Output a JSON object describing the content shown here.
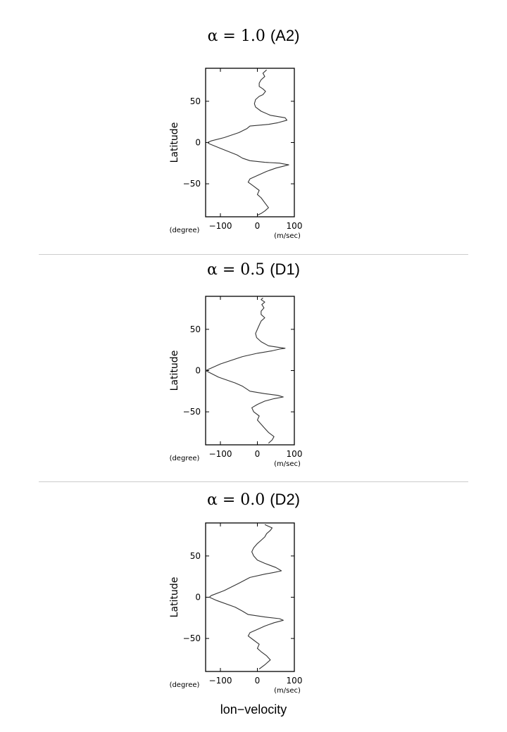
{
  "xlabel": "lon−velocity",
  "chart_data": [
    {
      "type": "line",
      "title_math": "α = 1.0",
      "title_tag": "(A2)",
      "ylabel": "Latitude",
      "y_unit_label": "(degree)",
      "x_unit_label": "(m/sec)",
      "xlim": [
        -140,
        100
      ],
      "ylim": [
        -90,
        90
      ],
      "xticks": [
        -100,
        0,
        100
      ],
      "xtick_labels": [
        "−100",
        "0",
        "100"
      ],
      "yticks": [
        50,
        0,
        -50
      ],
      "ytick_labels": [
        "50",
        "0",
        "−50"
      ],
      "series": [
        {
          "x": [
            25,
            20,
            15,
            20,
            10,
            5,
            5,
            15,
            22,
            15,
            5,
            -5,
            -8,
            -5,
            10,
            35,
            75,
            80,
            55,
            30,
            -20,
            -28,
            -50,
            -90,
            -125,
            -135,
            -128,
            -100,
            -55,
            -40,
            -20,
            20,
            60,
            85,
            50,
            25,
            0,
            -20,
            -25,
            -10,
            5,
            0,
            10,
            20,
            30,
            20,
            10,
            0
          ],
          "y": [
            88,
            86,
            84,
            80,
            76,
            72,
            68,
            65,
            62,
            58,
            56,
            52,
            47,
            43,
            38,
            33,
            30,
            27,
            24,
            22,
            20,
            17,
            12,
            6,
            2,
            0,
            -2,
            -7,
            -15,
            -19,
            -22,
            -24,
            -25,
            -27,
            -31,
            -35,
            -40,
            -44,
            -48,
            -53,
            -58,
            -63,
            -67,
            -73,
            -79,
            -83,
            -86,
            -88
          ]
        }
      ]
    },
    {
      "type": "line",
      "title_math": "α = 0.5",
      "title_tag": "(D1)",
      "ylabel": "Latitude",
      "y_unit_label": "(degree)",
      "x_unit_label": "(m/sec)",
      "xlim": [
        -140,
        100
      ],
      "ylim": [
        -90,
        90
      ],
      "xticks": [
        -100,
        0,
        100
      ],
      "xtick_labels": [
        "−100",
        "0",
        "100"
      ],
      "yticks": [
        50,
        0,
        -50
      ],
      "ytick_labels": [
        "50",
        "0",
        "−50"
      ],
      "series": [
        {
          "x": [
            15,
            10,
            20,
            12,
            18,
            10,
            10,
            20,
            10,
            5,
            0,
            -5,
            -2,
            10,
            30,
            60,
            75,
            60,
            40,
            0,
            -40,
            -100,
            -140,
            -105,
            -60,
            -40,
            -30,
            -20,
            20,
            55,
            70,
            45,
            20,
            0,
            -15,
            -10,
            5,
            0,
            10,
            20,
            30,
            45,
            40,
            30
          ],
          "y": [
            88,
            86,
            83,
            80,
            76,
            72,
            68,
            64,
            60,
            55,
            50,
            45,
            40,
            35,
            30,
            28,
            27,
            26,
            24,
            21,
            17,
            8,
            0,
            -8,
            -15,
            -19,
            -22,
            -25,
            -28,
            -30,
            -32,
            -34,
            -37,
            -41,
            -45,
            -50,
            -55,
            -60,
            -65,
            -70,
            -75,
            -80,
            -84,
            -88
          ]
        }
      ]
    },
    {
      "type": "line",
      "title_math": "α = 0.0",
      "title_tag": "(D2)",
      "ylabel": "Latitude",
      "y_unit_label": "(degree)",
      "x_unit_label": "(m/sec)",
      "xlim": [
        -140,
        100
      ],
      "ylim": [
        -90,
        90
      ],
      "xticks": [
        -100,
        0,
        100
      ],
      "xtick_labels": [
        "−100",
        "0",
        "100"
      ],
      "yticks": [
        50,
        0,
        -50
      ],
      "ytick_labels": [
        "50",
        "0",
        "−50"
      ],
      "series": [
        {
          "x": [
            20,
            30,
            40,
            35,
            25,
            20,
            10,
            0,
            -10,
            -15,
            -10,
            0,
            20,
            50,
            65,
            45,
            20,
            -20,
            -50,
            -90,
            -125,
            -130,
            -110,
            -60,
            -40,
            -25,
            20,
            60,
            70,
            45,
            20,
            0,
            -20,
            -25,
            -10,
            5,
            0,
            10,
            25,
            35,
            20,
            5
          ],
          "y": [
            88,
            86,
            84,
            81,
            77,
            73,
            69,
            65,
            60,
            55,
            50,
            45,
            41,
            36,
            32,
            30,
            28,
            24,
            17,
            8,
            2,
            0,
            -4,
            -12,
            -17,
            -21,
            -24,
            -26,
            -28,
            -31,
            -35,
            -39,
            -43,
            -47,
            -52,
            -57,
            -62,
            -66,
            -71,
            -76,
            -82,
            -87
          ]
        }
      ]
    }
  ]
}
